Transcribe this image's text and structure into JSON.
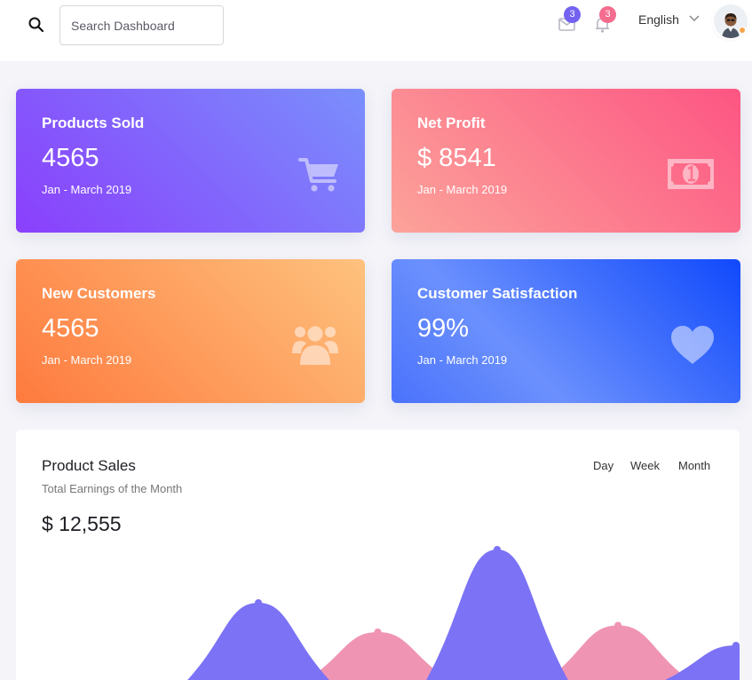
{
  "header": {
    "search": {
      "placeholder": "Search Dashboard",
      "value": ""
    },
    "mail_badge": "3",
    "notification_badge": "3",
    "language": "English"
  },
  "stats": [
    {
      "title": "Products Sold",
      "value": "4565",
      "period": "Jan - March 2019",
      "icon": "cart-icon"
    },
    {
      "title": "Net Profit",
      "value": "$ 8541",
      "period": "Jan - March 2019",
      "icon": "money-icon"
    },
    {
      "title": "New Customers",
      "value": "4565",
      "period": "Jan - March 2019",
      "icon": "users-icon"
    },
    {
      "title": "Customer Satisfaction",
      "value": "99%",
      "period": "Jan - March 2019",
      "icon": "heart-icon"
    }
  ],
  "sales": {
    "title": "Product Sales",
    "subtitle": "Total Earnings of the Month",
    "total": "$ 12,555",
    "ranges": [
      "Day",
      "Week",
      "Month"
    ]
  },
  "chart_data": {
    "type": "area",
    "series": [
      {
        "color": "#7b72f5",
        "peaks": [
          {
            "x": 0.335,
            "y": 0.58
          },
          {
            "x": 0.665,
            "y": 0.98
          },
          {
            "x": 0.995,
            "y": 0.26
          }
        ]
      },
      {
        "color": "#f094b4",
        "peaks": [
          {
            "x": 0.5,
            "y": 0.36
          },
          {
            "x": 0.832,
            "y": 0.41
          }
        ]
      }
    ],
    "peak_width": 0.098
  },
  "colors": {
    "primary": "#7b72f5",
    "secondary": "#f094b4",
    "mail_badge": "#7362f0",
    "notification_badge": "#f46c8e"
  }
}
